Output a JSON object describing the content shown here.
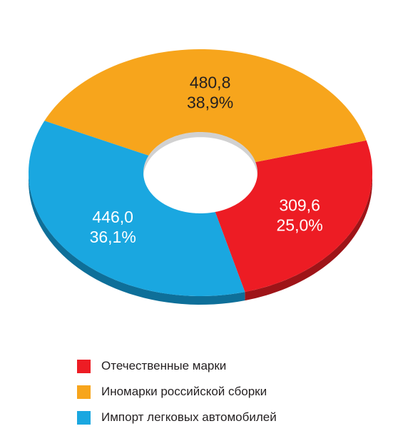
{
  "chart_data": {
    "type": "pie",
    "variant": "donut-3d",
    "slices": [
      {
        "name": "Отечественные марки",
        "value": 309.6,
        "value_label": "309,6",
        "percent_label": "25,0%",
        "color": "#ed1c24",
        "side_color": "#9e1418",
        "text_color": "#ffffff"
      },
      {
        "name": "Иномарки российской сборки",
        "value": 480.8,
        "value_label": "480,8",
        "percent_label": "38,9%",
        "color": "#f7a51c",
        "side_color": "#b26f10",
        "text_color": "#231f20"
      },
      {
        "name": "Импорт легковых автомобилей",
        "value": 446.0,
        "value_label": "446,0",
        "percent_label": "36,1%",
        "color": "#1aa7e0",
        "side_color": "#0e6f99",
        "text_color": "#ffffff"
      }
    ],
    "legend_position": "bottom"
  }
}
